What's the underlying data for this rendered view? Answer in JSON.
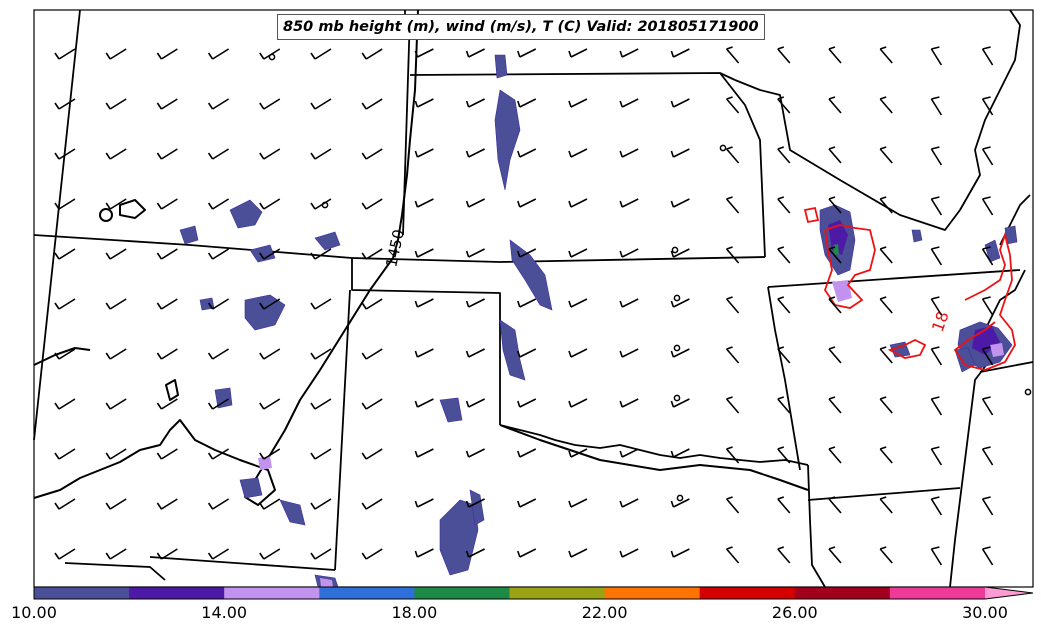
{
  "title": "850 mb height (m), wind (m/s), T (C) Valid: 201805171900",
  "height_contour_label": "1450",
  "temperature_contour_label": "18",
  "colorbar": {
    "colors": [
      "#4b4f98",
      "#4c1aa7",
      "#c293ee",
      "#2e6fd9",
      "#1d8a45",
      "#9aa314",
      "#ff7300",
      "#d40000",
      "#a3001e",
      "#f03a9a"
    ],
    "extend_color": "#ff9ad2",
    "tick_labels": [
      "10.00",
      "14.00",
      "18.00",
      "22.00",
      "26.00",
      "30.00"
    ]
  }
}
